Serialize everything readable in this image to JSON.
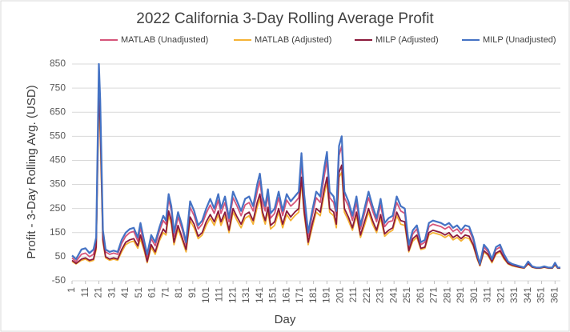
{
  "chart_data": {
    "type": "line",
    "title": "2022 California 3-Day Rolling Average Profit",
    "xlabel": "Day",
    "ylabel": "Profit -  3-Day Rolling Avg. (USD)",
    "xlim": [
      1,
      365
    ],
    "xticks": [
      1,
      11,
      21,
      31,
      41,
      51,
      61,
      71,
      81,
      91,
      101,
      111,
      121,
      131,
      141,
      151,
      161,
      171,
      181,
      191,
      201,
      211,
      221,
      231,
      241,
      251,
      261,
      271,
      281,
      291,
      301,
      311,
      321,
      331,
      341,
      351,
      361
    ],
    "ylim": [
      -50,
      850
    ],
    "yticks": [
      -50,
      50,
      150,
      250,
      350,
      450,
      550,
      650,
      750,
      850
    ],
    "grid": true,
    "legend": "top",
    "x": [
      1,
      4,
      8,
      11,
      14,
      17,
      19,
      21,
      22,
      24,
      26,
      29,
      32,
      35,
      38,
      41,
      44,
      47,
      50,
      52,
      55,
      57,
      60,
      63,
      66,
      69,
      71,
      73,
      75,
      77,
      80,
      83,
      86,
      89,
      92,
      95,
      98,
      101,
      104,
      107,
      110,
      112,
      115,
      118,
      121,
      124,
      127,
      130,
      133,
      136,
      139,
      141,
      143,
      145,
      147,
      149,
      152,
      155,
      158,
      161,
      164,
      167,
      170,
      172,
      174,
      177,
      180,
      183,
      186,
      189,
      191,
      193,
      196,
      198,
      200,
      202,
      204,
      207,
      210,
      213,
      216,
      219,
      222,
      225,
      228,
      231,
      234,
      237,
      240,
      243,
      246,
      249,
      252,
      255,
      258,
      261,
      264,
      267,
      270,
      273,
      276,
      279,
      282,
      285,
      288,
      291,
      294,
      297,
      300,
      303,
      305,
      308,
      311,
      314,
      317,
      320,
      323,
      326,
      329,
      332,
      335,
      338,
      341,
      344,
      347,
      350,
      353,
      356,
      359,
      361,
      363,
      365
    ],
    "series": [
      {
        "name": "MATLAB (Unadjusted)",
        "color": "#d6557a",
        "values": [
          45,
          30,
          60,
          65,
          50,
          60,
          110,
          760,
          640,
          140,
          70,
          60,
          65,
          60,
          105,
          135,
          150,
          155,
          115,
          170,
          95,
          50,
          125,
          95,
          155,
          200,
          185,
          290,
          240,
          135,
          215,
          165,
          100,
          255,
          220,
          165,
          185,
          230,
          265,
          230,
          285,
          230,
          275,
          195,
          295,
          260,
          220,
          265,
          275,
          240,
          320,
          365,
          275,
          240,
          305,
          210,
          230,
          295,
          220,
          285,
          260,
          275,
          295,
          440,
          285,
          135,
          220,
          295,
          275,
          385,
          450,
          295,
          275,
          220,
          470,
          510,
          295,
          260,
          200,
          275,
          165,
          230,
          295,
          240,
          195,
          265,
          175,
          195,
          200,
          275,
          240,
          230,
          90,
          145,
          165,
          100,
          110,
          175,
          185,
          180,
          175,
          165,
          175,
          155,
          165,
          145,
          165,
          160,
          120,
          55,
          18,
          90,
          70,
          35,
          80,
          90,
          55,
          27,
          18,
          13,
          8,
          4,
          27,
          9,
          4,
          4,
          9,
          4,
          4,
          22,
          4,
          4
        ]
      },
      {
        "name": "MATLAB (Adjusted)",
        "color": "#f5b335",
        "values": [
          30,
          20,
          35,
          40,
          30,
          35,
          80,
          700,
          560,
          110,
          45,
          35,
          40,
          35,
          70,
          100,
          110,
          115,
          85,
          125,
          70,
          25,
          90,
          60,
          115,
          150,
          140,
          220,
          185,
          100,
          165,
          120,
          70,
          200,
          170,
          125,
          140,
          180,
          210,
          180,
          225,
          180,
          220,
          150,
          235,
          200,
          170,
          210,
          220,
          185,
          255,
          290,
          220,
          185,
          240,
          165,
          180,
          235,
          170,
          225,
          200,
          220,
          235,
          360,
          225,
          100,
          170,
          235,
          220,
          310,
          360,
          235,
          220,
          170,
          380,
          400,
          235,
          200,
          160,
          220,
          130,
          180,
          235,
          185,
          150,
          210,
          135,
          150,
          160,
          220,
          185,
          180,
          70,
          115,
          130,
          80,
          85,
          140,
          150,
          145,
          140,
          130,
          140,
          120,
          130,
          115,
          130,
          125,
          95,
          40,
          12,
          70,
          55,
          25,
          60,
          70,
          40,
          20,
          12,
          8,
          5,
          2,
          20,
          6,
          2,
          2,
          6,
          2,
          2,
          15,
          2,
          2
        ]
      },
      {
        "name": "MILP (Adjusted)",
        "color": "#8b1a3c",
        "values": [
          35,
          22,
          40,
          45,
          35,
          40,
          90,
          740,
          600,
          120,
          50,
          40,
          45,
          40,
          80,
          110,
          120,
          125,
          95,
          140,
          80,
          30,
          100,
          70,
          125,
          165,
          150,
          240,
          200,
          110,
          180,
          130,
          80,
          215,
          185,
          135,
          150,
          195,
          225,
          195,
          240,
          195,
          235,
          160,
          250,
          215,
          185,
          225,
          235,
          200,
          275,
          310,
          235,
          200,
          255,
          180,
          195,
          250,
          185,
          240,
          215,
          235,
          250,
          380,
          240,
          110,
          185,
          250,
          235,
          330,
          380,
          250,
          235,
          185,
          400,
          430,
          250,
          215,
          170,
          235,
          140,
          195,
          250,
          200,
          160,
          225,
          145,
          160,
          170,
          235,
          200,
          195,
          75,
          125,
          140,
          85,
          90,
          150,
          160,
          155,
          150,
          140,
          150,
          130,
          140,
          125,
          140,
          135,
          100,
          45,
          15,
          75,
          60,
          30,
          65,
          75,
          45,
          22,
          15,
          10,
          6,
          3,
          22,
          7,
          3,
          3,
          7,
          3,
          3,
          18,
          3,
          3
        ]
      },
      {
        "name": "MILP (Unadjusted)",
        "color": "#4472c4",
        "values": [
          55,
          40,
          80,
          85,
          65,
          80,
          130,
          850,
          700,
          160,
          80,
          70,
          75,
          70,
          120,
          150,
          165,
          170,
          130,
          190,
          110,
          60,
          140,
          110,
          170,
          220,
          200,
          310,
          260,
          150,
          235,
          180,
          110,
          280,
          240,
          180,
          200,
          250,
          290,
          250,
          310,
          250,
          300,
          210,
          320,
          280,
          240,
          290,
          300,
          260,
          350,
          395,
          300,
          260,
          330,
          230,
          250,
          320,
          240,
          310,
          280,
          300,
          320,
          480,
          310,
          150,
          240,
          320,
          300,
          420,
          485,
          320,
          300,
          240,
          510,
          550,
          320,
          280,
          220,
          300,
          180,
          250,
          320,
          260,
          210,
          290,
          190,
          210,
          220,
          300,
          260,
          250,
          100,
          160,
          180,
          110,
          120,
          190,
          200,
          195,
          190,
          180,
          190,
          170,
          180,
          160,
          180,
          175,
          130,
          60,
          20,
          100,
          80,
          40,
          90,
          100,
          60,
          30,
          20,
          15,
          10,
          5,
          30,
          10,
          5,
          5,
          10,
          5,
          5,
          25,
          5,
          5
        ]
      }
    ]
  }
}
